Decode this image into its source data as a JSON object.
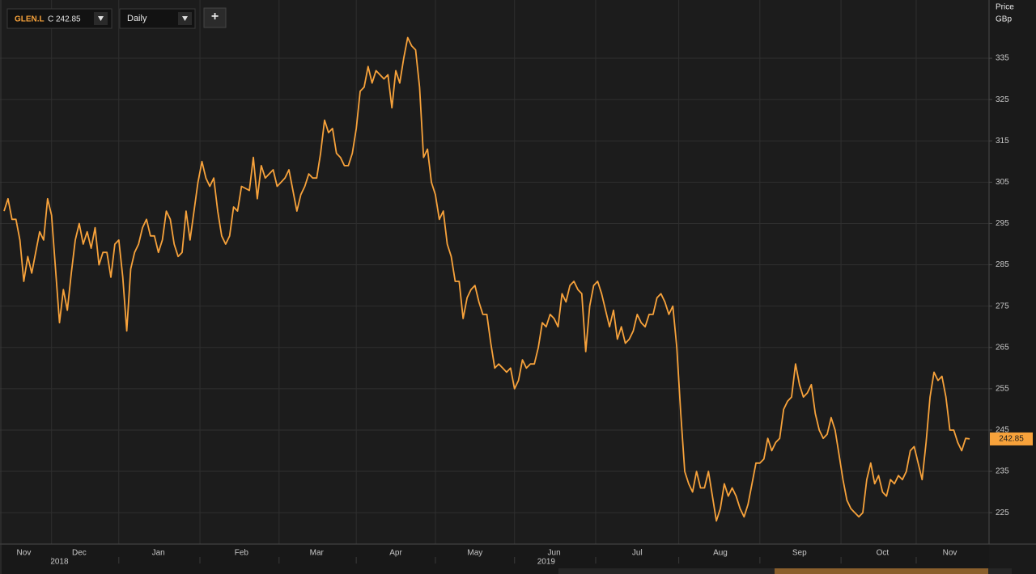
{
  "header": {
    "close_label": "C",
    "interval": "Daily",
    "add_button": "+"
  },
  "chart_data": {
    "type": "line",
    "y_axis_title": "Price",
    "y_axis_unit": "GBp",
    "categories": [
      null,
      null,
      null,
      null,
      null,
      "Nov",
      null,
      null,
      null,
      null,
      null,
      null,
      null,
      null,
      null,
      null,
      null,
      null,
      null,
      "Dec",
      null,
      null,
      null,
      null,
      null,
      null,
      null,
      null,
      null,
      null,
      null,
      null,
      null,
      null,
      null,
      null,
      null,
      null,
      null,
      "Jan",
      null,
      null,
      null,
      null,
      null,
      null,
      null,
      null,
      null,
      null,
      null,
      null,
      null,
      null,
      null,
      null,
      null,
      null,
      null,
      null,
      "Feb",
      null,
      null,
      null,
      null,
      null,
      null,
      null,
      null,
      null,
      null,
      null,
      null,
      null,
      null,
      null,
      null,
      null,
      null,
      "Mar",
      null,
      null,
      null,
      null,
      null,
      null,
      null,
      null,
      null,
      null,
      null,
      null,
      null,
      null,
      null,
      null,
      null,
      null,
      null,
      "Apr",
      null,
      null,
      null,
      null,
      null,
      null,
      null,
      null,
      null,
      null,
      null,
      null,
      null,
      null,
      null,
      null,
      null,
      null,
      null,
      "May",
      null,
      null,
      null,
      null,
      null,
      null,
      null,
      null,
      null,
      null,
      null,
      null,
      null,
      null,
      null,
      null,
      null,
      null,
      null,
      "Jun",
      null,
      null,
      null,
      null,
      null,
      null,
      null,
      null,
      null,
      null,
      null,
      null,
      null,
      null,
      null,
      null,
      null,
      null,
      null,
      null,
      "Jul",
      null,
      null,
      null,
      null,
      null,
      null,
      null,
      null,
      null,
      null,
      null,
      null,
      null,
      null,
      null,
      null,
      null,
      null,
      null,
      null,
      "Aug",
      null,
      null,
      null,
      null,
      null,
      null,
      null,
      null,
      null,
      null,
      null,
      null,
      null,
      null,
      null,
      null,
      null,
      null,
      null,
      "Sep",
      null,
      null,
      null,
      null,
      null,
      null,
      null,
      null,
      null,
      null,
      null,
      null,
      null,
      null,
      null,
      null,
      null,
      null,
      null,
      null,
      "Oct",
      null,
      null,
      null,
      null,
      null,
      null,
      null,
      null,
      null,
      null,
      null,
      null,
      null,
      null,
      null,
      null,
      "Nov",
      null,
      null,
      null,
      null,
      null
    ],
    "year_categories": [
      null,
      null,
      null,
      null,
      null,
      null,
      null,
      null,
      null,
      null,
      null,
      null,
      null,
      null,
      "2018",
      null,
      null,
      null,
      null,
      null,
      null,
      null,
      null,
      null,
      null,
      null,
      null,
      null,
      null,
      null,
      null,
      null,
      null,
      null,
      null,
      null,
      null,
      null,
      null,
      null,
      null,
      null,
      null,
      null,
      null,
      null,
      null,
      null,
      null,
      null,
      null,
      null,
      null,
      null,
      null,
      null,
      null,
      null,
      null,
      null,
      null,
      null,
      null,
      null,
      null,
      null,
      null,
      null,
      null,
      null,
      null,
      null,
      null,
      null,
      null,
      null,
      null,
      null,
      null,
      null,
      null,
      null,
      null,
      null,
      null,
      null,
      null,
      null,
      null,
      null,
      null,
      null,
      null,
      null,
      null,
      null,
      null,
      null,
      null,
      null,
      null,
      null,
      null,
      null,
      null,
      null,
      null,
      null,
      null,
      null,
      null,
      null,
      null,
      null,
      null,
      null,
      null,
      null,
      null,
      null,
      null,
      null,
      null,
      null,
      null,
      null,
      null,
      null,
      null,
      null,
      null,
      null,
      null,
      null,
      null,
      null,
      null,
      "2019",
      null,
      null,
      null,
      null,
      null,
      null,
      null,
      null,
      null,
      null,
      null,
      null,
      null,
      null,
      null,
      null,
      null,
      null,
      null,
      null,
      null,
      null,
      null,
      null,
      null,
      null,
      null,
      null,
      null,
      null,
      null,
      null,
      null,
      null,
      null,
      null,
      null,
      null,
      null,
      null,
      null,
      null,
      null,
      null,
      null,
      null,
      null,
      null,
      null,
      null,
      null,
      null,
      null,
      null,
      null,
      null,
      null,
      null,
      null,
      null,
      null,
      null,
      null,
      null,
      null,
      null,
      null,
      null,
      null,
      null,
      null,
      null,
      null,
      null,
      null,
      null,
      null,
      null,
      null,
      null,
      null,
      null,
      null,
      null,
      null,
      null,
      null,
      null,
      null,
      null,
      null,
      null,
      null,
      null,
      null,
      null,
      null,
      null,
      null,
      null,
      null,
      null,
      null,
      null,
      null,
      null,
      null
    ],
    "series": [
      {
        "name": "GLEN.L",
        "color": "#f7a23b",
        "values": [
          298,
          301,
          296,
          296,
          291,
          281,
          287,
          283,
          288,
          293,
          291,
          301,
          297,
          284,
          271,
          279,
          274,
          283,
          291,
          295,
          290,
          293,
          289,
          294,
          285,
          288,
          288,
          282,
          290,
          291,
          282,
          269,
          284,
          288,
          290,
          294,
          296,
          292,
          292,
          288,
          291,
          298,
          296,
          290,
          287,
          288,
          298,
          291,
          298,
          305,
          310,
          306,
          304,
          306,
          298,
          292,
          290,
          292,
          299,
          298,
          304,
          303.5,
          303,
          311,
          301,
          309,
          306,
          307,
          308,
          304,
          305,
          306,
          308,
          303,
          298,
          302,
          304,
          307,
          306,
          306,
          312,
          320,
          317,
          318,
          312,
          311,
          309,
          309,
          312,
          318,
          327,
          328,
          333,
          329,
          332,
          331,
          330,
          331,
          323,
          332,
          329,
          335,
          340,
          338,
          337,
          328,
          311,
          313,
          305,
          302,
          296,
          298,
          290,
          287,
          281,
          281,
          272,
          277,
          279,
          280,
          276,
          273,
          273,
          266,
          260,
          261,
          260,
          259,
          260,
          255,
          257,
          262,
          260,
          261,
          261,
          265,
          271,
          270,
          273,
          272,
          270,
          278,
          276,
          280,
          281,
          279,
          278,
          264,
          275,
          280,
          281,
          278,
          274,
          270,
          274,
          267,
          270,
          266,
          267,
          269,
          273,
          271,
          270,
          273,
          273,
          277,
          278,
          276,
          273,
          275,
          265,
          249,
          235,
          232,
          230,
          235,
          231,
          231,
          235,
          229,
          223,
          226,
          232,
          229,
          231,
          229,
          226,
          224,
          227,
          232,
          237,
          237,
          238,
          243,
          240,
          242,
          243,
          250,
          252,
          253,
          261,
          256,
          253,
          254,
          256,
          249,
          245,
          243,
          244,
          248,
          245,
          239,
          233,
          228,
          226,
          225,
          224,
          225,
          233,
          237,
          232,
          234,
          230,
          229,
          233,
          232,
          234,
          233,
          235,
          240,
          241,
          237,
          233,
          242,
          253,
          259,
          257,
          258,
          253,
          245,
          245,
          242,
          240,
          243,
          242.85
        ]
      }
    ],
    "ylim": [
      217.4,
      349.1
    ],
    "yticks": [
      225,
      235,
      245,
      255,
      265,
      275,
      285,
      295,
      305,
      315,
      325,
      335
    ],
    "grid": true
  }
}
